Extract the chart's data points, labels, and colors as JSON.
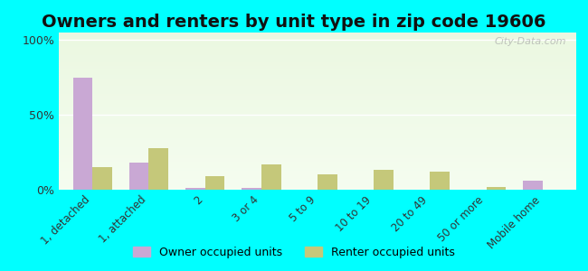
{
  "title": "Owners and renters by unit type in zip code 19606",
  "categories": [
    "1, detached",
    "1, attached",
    "2",
    "3 or 4",
    "5 to 9",
    "10 to 19",
    "20 to 49",
    "50 or more",
    "Mobile home"
  ],
  "owner_values": [
    75,
    18,
    1,
    1,
    0,
    0,
    0,
    0,
    6
  ],
  "renter_values": [
    15,
    28,
    9,
    17,
    10,
    13,
    12,
    2,
    0
  ],
  "owner_color": "#c9a8d4",
  "renter_color": "#c5c87a",
  "background_top": "#e8f5e0",
  "background_bottom": "#f5fdf0",
  "outer_background": "#00ffff",
  "yticks": [
    0,
    50,
    100
  ],
  "ylim": [
    0,
    105
  ],
  "legend_owner": "Owner occupied units",
  "legend_renter": "Renter occupied units",
  "watermark": "City-Data.com",
  "title_fontsize": 14,
  "bar_width": 0.35
}
